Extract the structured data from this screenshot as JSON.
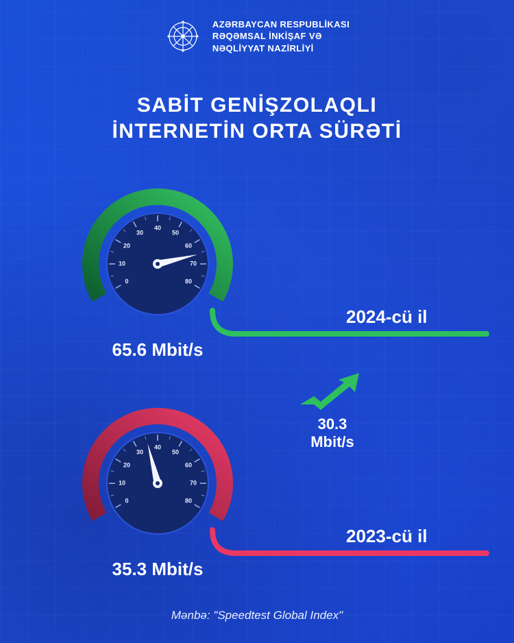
{
  "background_color": "#1d4adf",
  "header": {
    "ministry_line1": "AZƏRBAYCAN RESPUBLİKASI",
    "ministry_line2": "RƏQƏMSAL İNKİŞAF VƏ",
    "ministry_line3": "NƏQLİYYAT NAZİRLİYİ"
  },
  "title_line1": "SABİT GENİŞZOLAQLI",
  "title_line2": "İNTERNETİN ORTA SÜRƏTİ",
  "gauge_scale": {
    "min": 0,
    "max": 80,
    "ticks": [
      0,
      10,
      20,
      30,
      40,
      50,
      60,
      70,
      80
    ],
    "start_angle_deg": 210,
    "end_angle_deg": -30
  },
  "gauge_style": {
    "outer_radius": 110,
    "inner_radius": 86,
    "dial_radius": 74,
    "dial_fill": "#13276b",
    "dial_stroke": "#2a54d8",
    "needle_color": "#f4f6ff",
    "tick_label_color": "#e6ecff",
    "tick_fontsize": 9
  },
  "gauges": [
    {
      "id": "2024",
      "value": 65.6,
      "speed_label": "65.6 Mbit/s",
      "year_label": "2024-cü il",
      "arc_gradient_from": "#0b5a2d",
      "arc_gradient_to": "#37c864",
      "connector_color": "#2fbf5d"
    },
    {
      "id": "2023",
      "value": 35.3,
      "speed_label": "35.3 Mbit/s",
      "year_label": "2023-cü il",
      "arc_gradient_from": "#7e1a37",
      "arc_gradient_to": "#ef3d68",
      "connector_color": "#ea3863"
    }
  ],
  "difference": {
    "value_label": "30.3",
    "unit_label": "Mbit/s",
    "arrow_color": "#2fbf5d"
  },
  "source_label": "Mənbə: \"Speedtest Global Index\""
}
